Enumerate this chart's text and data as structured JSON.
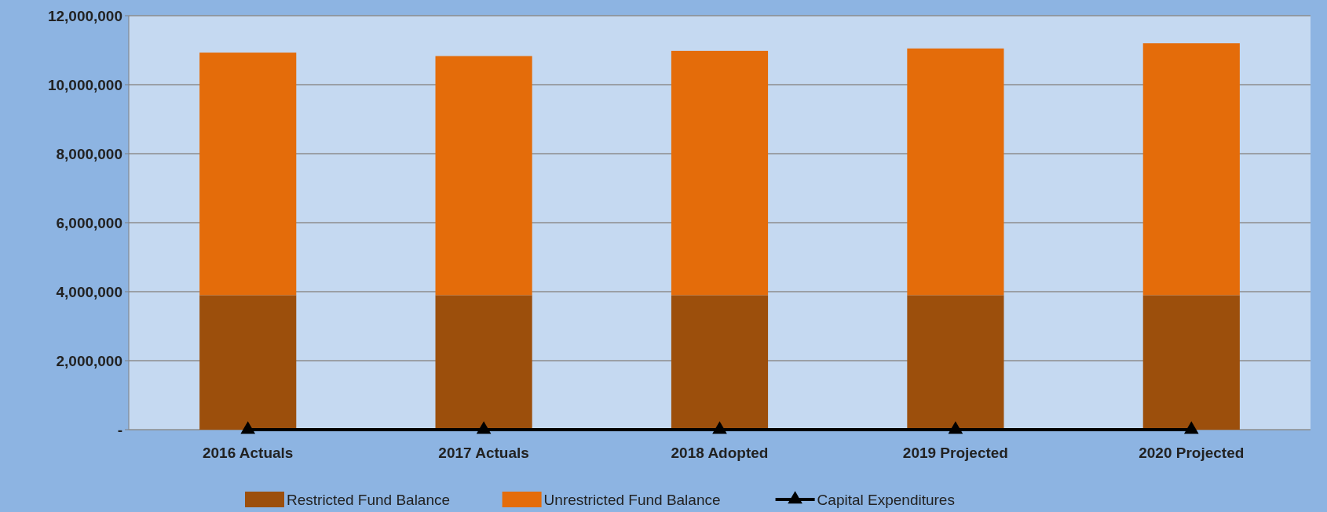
{
  "chart_data": {
    "type": "bar",
    "stacked": true,
    "categories": [
      "2016 Actuals",
      "2017 Actuals",
      "2018 Adopted",
      "2019 Projected",
      "2020 Projected"
    ],
    "series": [
      {
        "name": "Restricted Fund Balance",
        "color": "#9c4f0c",
        "values": [
          3900000,
          3900000,
          3900000,
          3900000,
          3900000
        ]
      },
      {
        "name": "Unrestricted Fund Balance",
        "color": "#e46c0a",
        "values": [
          7030000,
          6930000,
          7080000,
          7150000,
          7300000
        ]
      },
      {
        "name": "Capital Expenditures",
        "type": "line",
        "color": "#000000",
        "marker": "triangle",
        "values": [
          0,
          0,
          0,
          0,
          0
        ]
      }
    ],
    "ylim": [
      0,
      12000000
    ],
    "yticks": [
      {
        "value": 0,
        "label": "-"
      },
      {
        "value": 2000000,
        "label": "2,000,000"
      },
      {
        "value": 4000000,
        "label": "4,000,000"
      },
      {
        "value": 6000000,
        "label": "6,000,000"
      },
      {
        "value": 8000000,
        "label": "8,000,000"
      },
      {
        "value": 10000000,
        "label": "10,000,000"
      },
      {
        "value": 12000000,
        "label": "12,000,000"
      }
    ],
    "grid": "y",
    "legend": "bottom"
  }
}
